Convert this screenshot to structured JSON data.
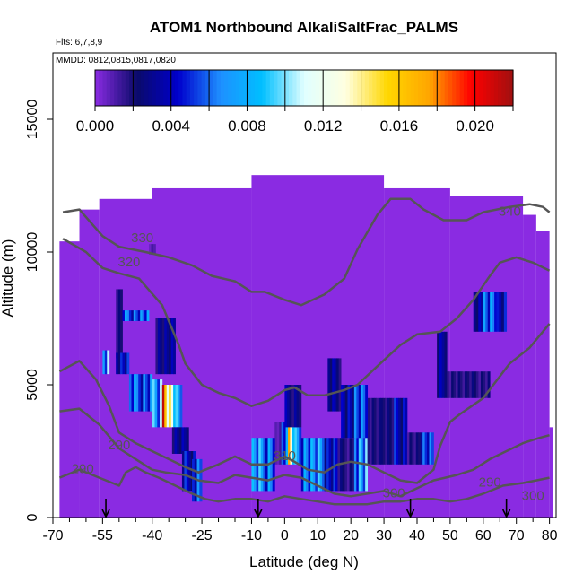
{
  "chart_data": {
    "type": "heatmap",
    "title": "ATOM1 Northbound AlkaliSaltFrac_PALMS",
    "flights_label": "Flts: 6,7,8,9",
    "dates_label": "MMDD: 0812,0815,0817,0820",
    "xlabel": "Latitude (deg N)",
    "ylabel": "Altitude (m)",
    "xlim": [
      -70,
      82
    ],
    "ylim": [
      0,
      17500
    ],
    "x_ticks": [
      -70,
      -55,
      -40,
      -25,
      -10,
      0,
      10,
      20,
      30,
      40,
      50,
      60,
      70,
      80
    ],
    "y_ticks": [
      0,
      5000,
      10000,
      15000
    ],
    "x_tick_labels": [
      "-70",
      "-55",
      "-40",
      "-25",
      "-10",
      "0",
      "10",
      "20",
      "30",
      "40",
      "50",
      "60",
      "70",
      "80"
    ],
    "y_tick_labels": [
      "0",
      "5000",
      "10000",
      "15000"
    ],
    "colorbar": {
      "min": 0,
      "max": 0.022,
      "tick_values": [
        0,
        0.004,
        0.008,
        0.012,
        0.016,
        0.02
      ],
      "tick_labels": [
        "0.000",
        "0.004",
        "0.008",
        "0.012",
        "0.016",
        "0.020"
      ],
      "stops": [
        "#8a2be2",
        "#0a0a6a",
        "#0000cd",
        "#1e90ff",
        "#00bfff",
        "#e0ffff",
        "#ffffe0",
        "#ffd700",
        "#ffa500",
        "#ff0000",
        "#a01010"
      ]
    },
    "background_value": 0.0,
    "envelope_color": "#8a2be2",
    "envelope": [
      [
        -68,
        -62,
        0,
        10400
      ],
      [
        -62,
        -56,
        0,
        11600
      ],
      [
        -56,
        -40,
        0,
        12000
      ],
      [
        -40,
        -10,
        0,
        12400
      ],
      [
        -10,
        30,
        0,
        12900
      ],
      [
        30,
        50,
        0,
        12400
      ],
      [
        50,
        72,
        0,
        12100
      ],
      [
        72,
        76,
        0,
        11400
      ],
      [
        76,
        80,
        0,
        10800
      ],
      [
        80,
        81,
        0,
        3400
      ]
    ],
    "cells": [
      [
        -41,
        -39,
        9900,
        10300,
        0.001
      ],
      [
        -51,
        -49,
        6000,
        8600,
        0.002
      ],
      [
        -49,
        -41,
        7400,
        7800,
        0.006
      ],
      [
        -55,
        -53,
        5400,
        6300,
        0.009
      ],
      [
        -51,
        -47,
        5400,
        6200,
        0.004
      ],
      [
        -47,
        -40,
        4000,
        5400,
        0.006
      ],
      [
        -40,
        -37,
        3400,
        5200,
        0.009
      ],
      [
        -37,
        -35,
        3400,
        5000,
        0.018
      ],
      [
        -35,
        -33,
        3400,
        5000,
        0.012
      ],
      [
        -33,
        -31,
        3400,
        5000,
        0.007
      ],
      [
        -39,
        -33,
        5400,
        7500,
        0.003
      ],
      [
        -34,
        -29,
        2400,
        3400,
        0.003
      ],
      [
        -31,
        -27,
        1000,
        2500,
        0.004
      ],
      [
        -28,
        -25,
        600,
        2200,
        0.006
      ],
      [
        -3,
        -1,
        2000,
        3600,
        0.001
      ],
      [
        -1,
        1,
        2000,
        3600,
        0.006
      ],
      [
        1,
        3,
        2000,
        3600,
        0.016
      ],
      [
        3,
        5,
        2000,
        3400,
        0.008
      ],
      [
        -10,
        -3,
        1000,
        3000,
        0.007
      ],
      [
        0,
        5,
        3400,
        5000,
        0.003
      ],
      [
        5,
        12,
        1000,
        3000,
        0.007
      ],
      [
        12,
        16,
        1000,
        3000,
        0.004
      ],
      [
        16,
        21,
        1000,
        3000,
        0.002
      ],
      [
        21,
        25,
        1000,
        3000,
        0.008
      ],
      [
        25,
        29,
        2000,
        4500,
        0.002
      ],
      [
        13,
        17,
        4000,
        6000,
        0.003
      ],
      [
        17,
        21,
        3000,
        5000,
        0.004
      ],
      [
        21,
        25,
        3000,
        5000,
        0.006
      ],
      [
        29,
        33,
        2000,
        4500,
        0.002
      ],
      [
        33,
        37,
        2000,
        4500,
        0.004
      ],
      [
        37,
        41,
        2000,
        3200,
        0.002
      ],
      [
        41,
        45,
        2000,
        3200,
        0.005
      ],
      [
        46,
        49,
        4500,
        7000,
        0.003
      ],
      [
        49,
        53,
        4500,
        5500,
        0.002
      ],
      [
        53,
        62,
        4500,
        5500,
        0.002
      ],
      [
        57,
        60,
        7000,
        8500,
        0.003
      ],
      [
        60,
        64,
        7000,
        8500,
        0.007
      ],
      [
        64,
        67,
        7000,
        8500,
        0.004
      ]
    ],
    "contours": [
      {
        "label": "330",
        "points": [
          [
            -67,
            11500
          ],
          [
            -62,
            11600
          ],
          [
            -55,
            10600
          ],
          [
            -50,
            10200
          ],
          [
            -42,
            10000
          ],
          [
            -35,
            9800
          ],
          [
            -28,
            9500
          ],
          [
            -22,
            9100
          ],
          [
            -15,
            8900
          ],
          [
            -10,
            8500
          ],
          [
            -6,
            8500
          ],
          [
            0,
            8200
          ],
          [
            5,
            8000
          ],
          [
            12,
            8400
          ],
          [
            18,
            9000
          ],
          [
            22,
            10100
          ],
          [
            28,
            11400
          ],
          [
            32,
            12000
          ],
          [
            38,
            12000
          ],
          [
            42,
            11600
          ],
          [
            48,
            11200
          ],
          [
            55,
            11200
          ],
          [
            60,
            11500
          ],
          [
            68,
            11700
          ],
          [
            74,
            11800
          ],
          [
            78,
            11700
          ],
          [
            80,
            11500
          ]
        ]
      },
      {
        "label": "320",
        "points": [
          [
            -67,
            10500
          ],
          [
            -60,
            10000
          ],
          [
            -55,
            9400
          ],
          [
            -50,
            9200
          ],
          [
            -44,
            9000
          ],
          [
            -37,
            8000
          ],
          [
            -32,
            6500
          ],
          [
            -30,
            5800
          ],
          [
            -25,
            5000
          ],
          [
            -20,
            4700
          ],
          [
            -15,
            4500
          ],
          [
            -10,
            4200
          ],
          [
            -5,
            4400
          ],
          [
            0,
            4800
          ],
          [
            3,
            4900
          ],
          [
            7,
            4600
          ],
          [
            12,
            4600
          ],
          [
            18,
            4800
          ],
          [
            22,
            5000
          ],
          [
            28,
            5700
          ],
          [
            35,
            6500
          ],
          [
            40,
            6900
          ],
          [
            47,
            7000
          ],
          [
            52,
            7500
          ],
          [
            57,
            8200
          ],
          [
            62,
            9100
          ],
          [
            65,
            9600
          ],
          [
            70,
            9800
          ],
          [
            75,
            9600
          ],
          [
            80,
            9300
          ]
        ]
      },
      {
        "label": "310",
        "points": [
          [
            -68,
            5500
          ],
          [
            -62,
            5900
          ],
          [
            -57,
            5200
          ],
          [
            -53,
            4200
          ],
          [
            -50,
            3200
          ],
          [
            -45,
            2800
          ],
          [
            -40,
            2500
          ],
          [
            -35,
            2200
          ],
          [
            -30,
            1900
          ],
          [
            -26,
            1700
          ],
          [
            -20,
            2000
          ],
          [
            -15,
            2300
          ],
          [
            -10,
            2000
          ],
          [
            -5,
            2000
          ],
          [
            0,
            2300
          ],
          [
            3,
            2100
          ],
          [
            7,
            1800
          ],
          [
            12,
            1700
          ],
          [
            16,
            2000
          ],
          [
            20,
            2100
          ],
          [
            25,
            2000
          ],
          [
            30,
            1700
          ],
          [
            35,
            1400
          ],
          [
            40,
            1300
          ],
          [
            45,
            1800
          ],
          [
            47,
            2700
          ],
          [
            50,
            3600
          ],
          [
            53,
            3900
          ],
          [
            60,
            4500
          ],
          [
            68,
            5800
          ],
          [
            74,
            6400
          ],
          [
            78,
            7000
          ],
          [
            80,
            7300
          ]
        ]
      },
      {
        "label": "300",
        "points": [
          [
            -68,
            4000
          ],
          [
            -62,
            4100
          ],
          [
            -56,
            3500
          ],
          [
            -50,
            2600
          ],
          [
            -45,
            2200
          ],
          [
            -40,
            1800
          ],
          [
            -36,
            1700
          ],
          [
            -30,
            1600
          ],
          [
            -26,
            1400
          ],
          [
            -20,
            1300
          ],
          [
            -15,
            1600
          ],
          [
            -10,
            1500
          ],
          [
            -5,
            1400
          ],
          [
            0,
            1600
          ],
          [
            5,
            1500
          ],
          [
            10,
            1200
          ],
          [
            15,
            900
          ],
          [
            20,
            800
          ],
          [
            25,
            900
          ],
          [
            30,
            1000
          ],
          [
            35,
            800
          ],
          [
            40,
            1100
          ],
          [
            45,
            1400
          ],
          [
            52,
            1600
          ],
          [
            57,
            1800
          ],
          [
            62,
            2200
          ],
          [
            67,
            2500
          ],
          [
            72,
            2800
          ],
          [
            77,
            3000
          ],
          [
            80,
            3100
          ]
        ]
      },
      {
        "label": "290",
        "points": [
          [
            -68,
            1500
          ],
          [
            -62,
            1800
          ],
          [
            -58,
            1600
          ],
          [
            -54,
            1400
          ],
          [
            -50,
            1200
          ],
          [
            -48,
            1700
          ],
          [
            -45,
            1900
          ],
          [
            -42,
            1700
          ],
          [
            -38,
            1500
          ],
          [
            -33,
            1200
          ],
          [
            -28,
            900
          ],
          [
            -24,
            700
          ],
          [
            -20,
            600
          ],
          [
            -15,
            700
          ],
          [
            -10,
            700
          ],
          [
            -5,
            600
          ],
          [
            0,
            800
          ],
          [
            5,
            700
          ],
          [
            10,
            600
          ],
          [
            15,
            500
          ],
          [
            20,
            500
          ],
          [
            25,
            500
          ],
          [
            30,
            600
          ],
          [
            35,
            600
          ],
          [
            40,
            700
          ],
          [
            45,
            700
          ],
          [
            50,
            600
          ],
          [
            55,
            700
          ],
          [
            60,
            900
          ],
          [
            66,
            1200
          ],
          [
            72,
            1300
          ],
          [
            76,
            1400
          ],
          [
            80,
            1500
          ]
        ]
      }
    ],
    "contour_labels": [
      {
        "text": "330",
        "x": -43,
        "y": 10500
      },
      {
        "text": "320",
        "x": -47,
        "y": 9600
      },
      {
        "text": "340",
        "x": 68,
        "y": 11500
      },
      {
        "text": "310",
        "x": 0,
        "y": 2300
      },
      {
        "text": "300",
        "x": 33,
        "y": 900
      },
      {
        "text": "290",
        "x": -50,
        "y": 2700
      },
      {
        "text": "290",
        "x": -61,
        "y": 1800
      },
      {
        "text": "290",
        "x": 62,
        "y": 1300
      },
      {
        "text": "300",
        "x": 75,
        "y": 800
      }
    ],
    "contour_color": "#555555",
    "arrow_positions": [
      -54,
      -8,
      38,
      67
    ]
  }
}
